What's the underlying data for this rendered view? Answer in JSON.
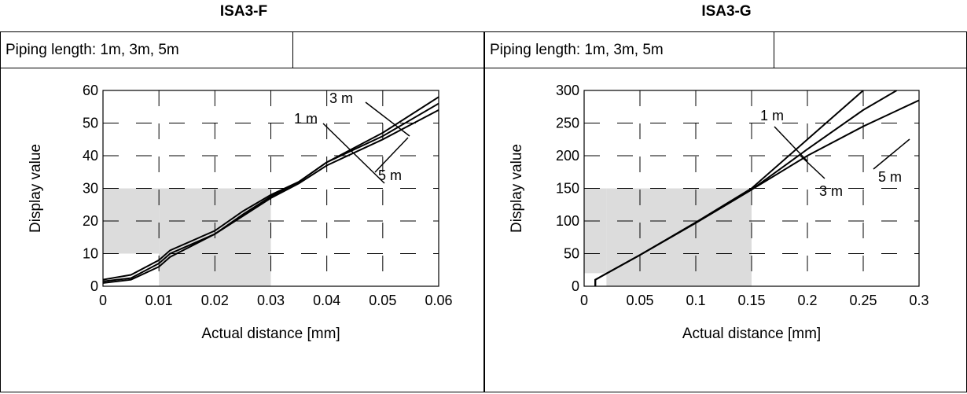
{
  "panels": [
    {
      "title": "ISA3-F",
      "info_cells": [
        "Piping length: 1m, 3m, 5m",
        ""
      ]
    },
    {
      "title": "ISA3-G",
      "info_cells": [
        "Piping length: 1m, 3m, 5m",
        ""
      ]
    }
  ],
  "chart_data": [
    {
      "type": "line",
      "title": "ISA3-F",
      "xlabel": "Actual distance [mm]",
      "ylabel": "Display value",
      "xlim": [
        0,
        0.06
      ],
      "ylim": [
        0,
        60
      ],
      "x_ticks": [
        "0",
        "0.01",
        "0.02",
        "0.03",
        "0.04",
        "0.05",
        "0.06"
      ],
      "y_ticks": [
        "0",
        "10",
        "20",
        "30",
        "40",
        "50",
        "60"
      ],
      "grid": "dashed",
      "shaded_region": {
        "x": [
          0.01,
          0.03
        ],
        "y": [
          0,
          30
        ],
        "extra_x": [
          0,
          0.01
        ],
        "extra_y": [
          10,
          30
        ]
      },
      "series": [
        {
          "name": "1 m",
          "x": [
            0,
            0.005,
            0.01,
            0.012,
            0.02,
            0.025,
            0.03,
            0.035,
            0.04,
            0.05,
            0.06
          ],
          "y": [
            2,
            3.5,
            8,
            11,
            17,
            23,
            28,
            32,
            38,
            47,
            58
          ]
        },
        {
          "name": "3 m",
          "x": [
            0,
            0.005,
            0.01,
            0.012,
            0.02,
            0.025,
            0.03,
            0.035,
            0.04,
            0.05,
            0.06
          ],
          "y": [
            1.5,
            2.5,
            7,
            10,
            16,
            22,
            27.5,
            32,
            38,
            46,
            56
          ]
        },
        {
          "name": "5 m",
          "x": [
            0,
            0.005,
            0.01,
            0.012,
            0.02,
            0.025,
            0.03,
            0.035,
            0.04,
            0.05,
            0.06
          ],
          "y": [
            1,
            2,
            6,
            9,
            16,
            21.5,
            27,
            31.5,
            37,
            45,
            54
          ]
        }
      ],
      "annotations": [
        "3 m",
        "1 m",
        "5 m"
      ]
    },
    {
      "type": "line",
      "title": "ISA3-G",
      "xlabel": "Actual distance [mm]",
      "ylabel": "Display value",
      "xlim": [
        0,
        0.3
      ],
      "ylim": [
        0,
        300
      ],
      "x_ticks": [
        "0",
        "0.05",
        "0.1",
        "0.15",
        "0.2",
        "0.25",
        "0.3"
      ],
      "y_ticks": [
        "0",
        "50",
        "100",
        "150",
        "200",
        "250",
        "300"
      ],
      "grid": "dashed",
      "shaded_region": {
        "x": [
          0.02,
          0.15
        ],
        "y": [
          0,
          150
        ],
        "extra_x": [
          0,
          0.02
        ],
        "extra_y": [
          20,
          150
        ]
      },
      "series": [
        {
          "name": "1 m",
          "x": [
            0.01,
            0.01,
            0.05,
            0.1,
            0.15,
            0.2,
            0.25
          ],
          "y": [
            0,
            10,
            48,
            98,
            150,
            225,
            300
          ]
        },
        {
          "name": "3 m",
          "x": [
            0.01,
            0.01,
            0.05,
            0.1,
            0.15,
            0.2,
            0.25,
            0.28
          ],
          "y": [
            0,
            10,
            48,
            97,
            148,
            210,
            270,
            300
          ]
        },
        {
          "name": "5 m",
          "x": [
            0.01,
            0.01,
            0.05,
            0.1,
            0.15,
            0.2,
            0.25,
            0.3
          ],
          "y": [
            0,
            10,
            48,
            97,
            148,
            200,
            245,
            285
          ]
        }
      ],
      "annotations": [
        "1 m",
        "3 m",
        "5 m"
      ]
    }
  ]
}
